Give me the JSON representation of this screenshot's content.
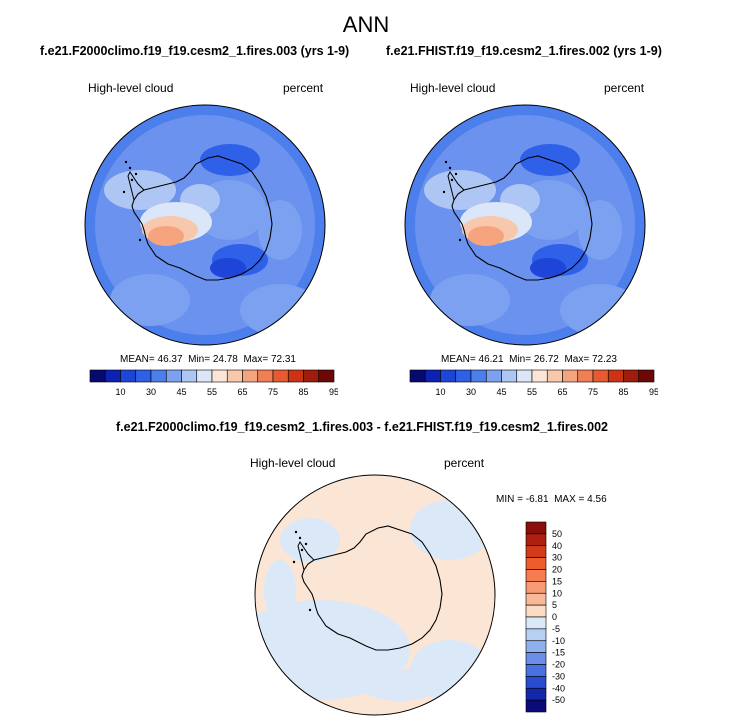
{
  "figure": {
    "title": "ANN"
  },
  "panels": [
    {
      "case": "f.e21.F2000climo.f19_f19.cesm2_1.fires.003 (yrs 1-9)",
      "variable": "High-level cloud",
      "units": "percent",
      "stats": {
        "mean_label": "MEAN=",
        "mean": "46.37",
        "min_label": "Min=",
        "min": "24.78",
        "max_label": "Max=",
        "max": "72.31"
      }
    },
    {
      "case": "f.e21.FHIST.f19_f19.cesm2_1.fires.002 (yrs 1-9)",
      "variable": "High-level cloud",
      "units": "percent",
      "stats": {
        "mean_label": "MEAN=",
        "mean": "46.21",
        "min_label": "Min=",
        "min": "26.72",
        "max_label": "Max=",
        "max": "72.23"
      }
    },
    {
      "case": "f.e21.F2000climo.f19_f19.cesm2_1.fires.003 - f.e21.FHIST.f19_f19.cesm2_1.fires.002",
      "variable": "High-level cloud",
      "units": "percent",
      "stats": {
        "min_label": "MIN =",
        "min": "-6.81",
        "max_label": "MAX =",
        "max": "4.56"
      }
    }
  ],
  "chart_data": [
    {
      "type": "heatmap",
      "projection": "south-polar-stereographic",
      "title": "f.e21.F2000climo.f19_f19.cesm2_1.fires.003 (yrs 1-9)",
      "variable": "High-level cloud",
      "units": "percent",
      "mean": 46.37,
      "min": 24.78,
      "max": 72.31,
      "colorbar": {
        "orientation": "horizontal",
        "ticks": [
          "10",
          "30",
          "45",
          "55",
          "65",
          "75",
          "85",
          "95"
        ],
        "colors": [
          "#08086e",
          "#0d22b4",
          "#1e44d8",
          "#2f60e8",
          "#4d7fec",
          "#7ba1f0",
          "#adc6f4",
          "#dbe6f8",
          "#fbe6d6",
          "#f7c8ac",
          "#f5a47e",
          "#f07f55",
          "#e85a30",
          "#cc3314",
          "#a01c0c",
          "#6e0806"
        ]
      }
    },
    {
      "type": "heatmap",
      "projection": "south-polar-stereographic",
      "title": "f.e21.FHIST.f19_f19.cesm2_1.fires.002 (yrs 1-9)",
      "variable": "High-level cloud",
      "units": "percent",
      "mean": 46.21,
      "min": 26.72,
      "max": 72.23,
      "colorbar": {
        "orientation": "horizontal",
        "ticks": [
          "10",
          "30",
          "45",
          "55",
          "65",
          "75",
          "85",
          "95"
        ],
        "colors": [
          "#08086e",
          "#0d22b4",
          "#1e44d8",
          "#2f60e8",
          "#4d7fec",
          "#7ba1f0",
          "#adc6f4",
          "#dbe6f8",
          "#fbe6d6",
          "#f7c8ac",
          "#f5a47e",
          "#f07f55",
          "#e85a30",
          "#cc3314",
          "#a01c0c",
          "#6e0806"
        ]
      }
    },
    {
      "type": "heatmap",
      "projection": "south-polar-stereographic",
      "title": "f.e21.F2000climo.f19_f19.cesm2_1.fires.003 - f.e21.FHIST.f19_f19.cesm2_1.fires.002",
      "variable": "High-level cloud",
      "units": "percent",
      "min": -6.81,
      "max": 4.56,
      "colorbar": {
        "orientation": "vertical",
        "ticks": [
          "50",
          "40",
          "30",
          "20",
          "15",
          "10",
          "5",
          "0",
          "-5",
          "-10",
          "-15",
          "-20",
          "-30",
          "-40",
          "-50"
        ],
        "colors": [
          "#8a0e0a",
          "#b01e10",
          "#d23a1a",
          "#ee5c2c",
          "#f47c4e",
          "#f59a74",
          "#f7b99a",
          "#fbdcc4",
          "#dbe8f8",
          "#b8cff4",
          "#8fb0ee",
          "#6a8de6",
          "#4a6fe0",
          "#2a4cd0",
          "#1228a8",
          "#0a0a78"
        ]
      }
    }
  ]
}
